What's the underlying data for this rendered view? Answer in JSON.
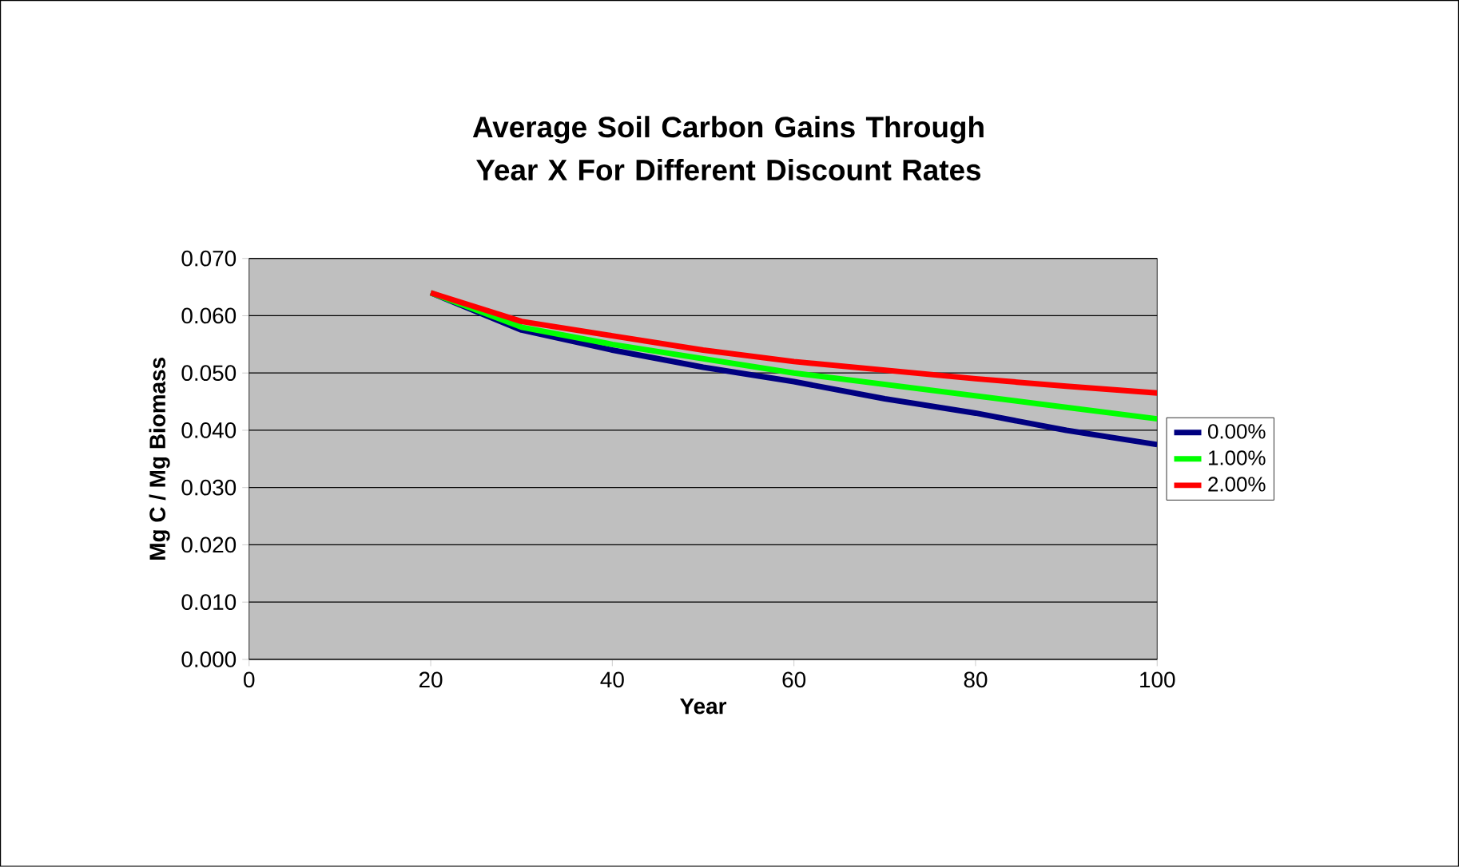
{
  "chart_data": {
    "type": "line",
    "title": "Average Soil Carbon Gains Through Year X For Different Discount Rates",
    "xlabel": "Year",
    "ylabel": "Mg C / Mg Biomass",
    "x": [
      20,
      30,
      40,
      50,
      60,
      70,
      80,
      90,
      100
    ],
    "series": [
      {
        "name": "0.00%",
        "color": "#000080",
        "values": [
          0.064,
          0.0575,
          0.054,
          0.051,
          0.0485,
          0.0455,
          0.043,
          0.04,
          0.0375
        ]
      },
      {
        "name": "1.00%",
        "color": "#00ff00",
        "values": [
          0.064,
          0.058,
          0.055,
          0.0525,
          0.05,
          0.048,
          0.046,
          0.044,
          0.042
        ]
      },
      {
        "name": "2.00%",
        "color": "#ff0000",
        "values": [
          0.064,
          0.059,
          0.0565,
          0.054,
          0.052,
          0.0505,
          0.049,
          0.0477,
          0.0465
        ]
      }
    ],
    "xlim": [
      0,
      100
    ],
    "xticks": [
      0,
      20,
      40,
      60,
      80,
      100
    ],
    "ylim": [
      0,
      0.07
    ],
    "yticks": [
      {
        "value": 0,
        "label": "0.000"
      },
      {
        "value": 0.01,
        "label": "0.010"
      },
      {
        "value": 0.02,
        "label": "0.020"
      },
      {
        "value": 0.03,
        "label": "0.030"
      },
      {
        "value": 0.04,
        "label": "0.040"
      },
      {
        "value": 0.05,
        "label": "0.050"
      },
      {
        "value": 0.06,
        "label": "0.060"
      },
      {
        "value": 0.07,
        "label": "0.070"
      }
    ],
    "grid": "y",
    "legend": "right",
    "marker": "none",
    "line_style": "solid"
  }
}
